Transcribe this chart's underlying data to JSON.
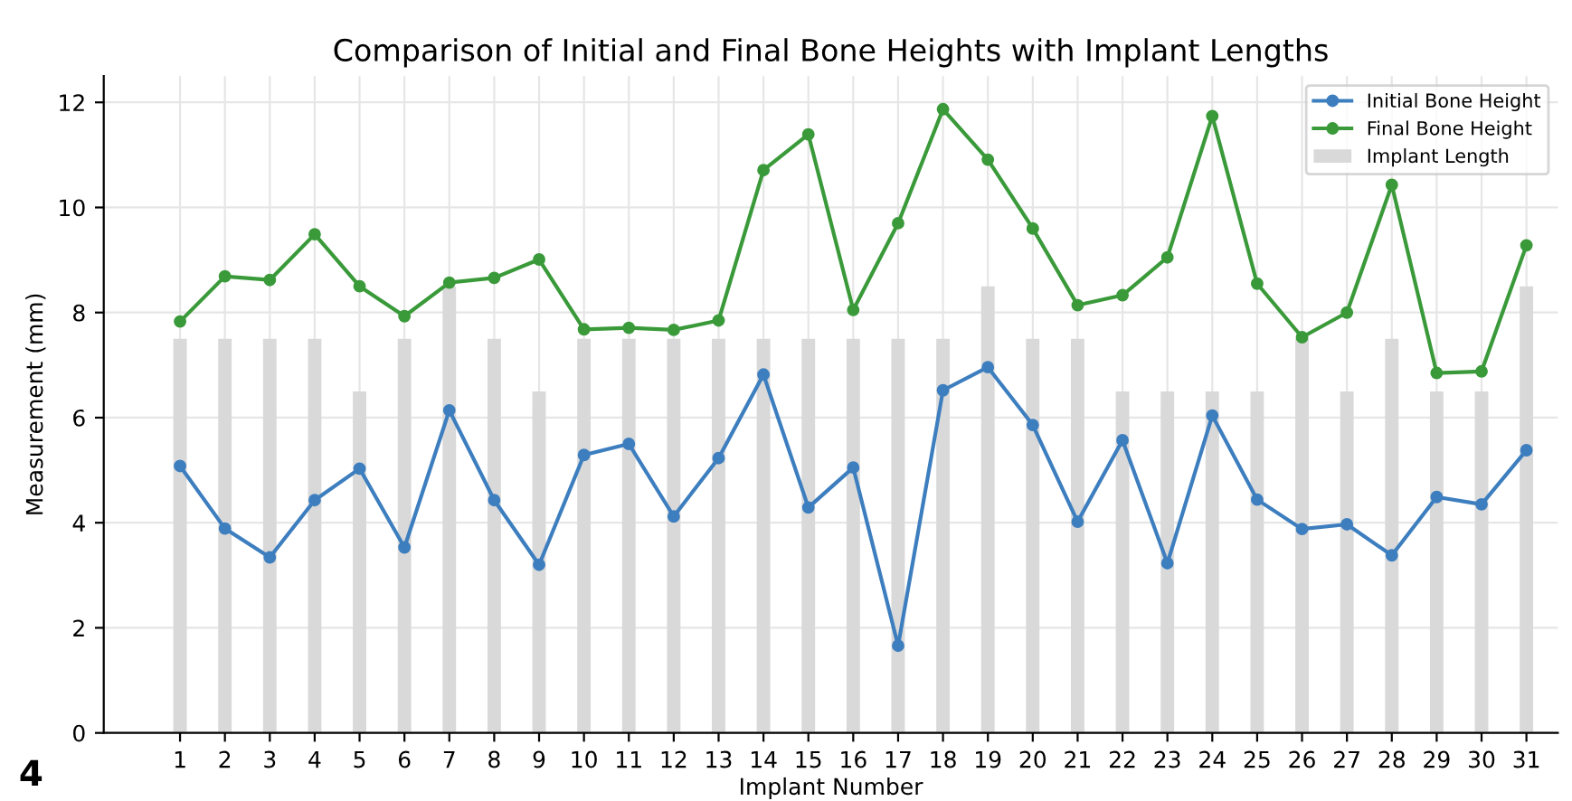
{
  "chart_data": {
    "type": "line",
    "title": "Comparison of Initial and Final Bone Heights with Implant Lengths",
    "xlabel": "Implant Number",
    "ylabel": "Measurement (mm)",
    "categories": [
      "1",
      "2",
      "3",
      "4",
      "5",
      "6",
      "7",
      "8",
      "9",
      "10",
      "11",
      "12",
      "13",
      "14",
      "15",
      "16",
      "17",
      "18",
      "19",
      "20",
      "21",
      "22",
      "23",
      "24",
      "25",
      "26",
      "27",
      "28",
      "29",
      "30",
      "31"
    ],
    "series": [
      {
        "name": "Implant Length",
        "type": "bar",
        "color": "#d9d9d9",
        "values": [
          7.5,
          7.5,
          7.5,
          7.5,
          6.5,
          7.5,
          8.5,
          7.5,
          6.5,
          7.5,
          7.5,
          7.5,
          7.5,
          7.5,
          7.5,
          7.5,
          7.5,
          7.5,
          8.5,
          7.5,
          7.5,
          6.5,
          6.5,
          6.5,
          6.5,
          7.5,
          6.5,
          7.5,
          6.5,
          6.5,
          8.5
        ]
      },
      {
        "name": "Initial Bone Height",
        "color": "#3d7ebf",
        "marker": "circle",
        "values": [
          5.08,
          3.89,
          3.34,
          4.43,
          5.03,
          3.53,
          6.14,
          4.43,
          3.2,
          5.29,
          5.5,
          4.12,
          5.23,
          6.82,
          4.29,
          5.05,
          1.66,
          6.52,
          6.96,
          5.86,
          4.02,
          5.57,
          3.23,
          6.04,
          4.44,
          3.88,
          3.97,
          3.38,
          4.49,
          4.35,
          5.38
        ]
      },
      {
        "name": "Final Bone Height",
        "color": "#3a9a3a",
        "marker": "circle",
        "values": [
          7.83,
          8.69,
          8.62,
          9.49,
          8.5,
          7.93,
          8.57,
          8.66,
          9.01,
          7.68,
          7.71,
          7.67,
          7.85,
          10.71,
          11.39,
          8.05,
          9.7,
          11.87,
          10.91,
          9.6,
          8.14,
          8.33,
          9.05,
          11.74,
          8.55,
          7.53,
          8.0,
          10.43,
          6.85,
          6.88,
          9.28
        ]
      }
    ],
    "ylim": [
      0,
      12.5
    ],
    "yticks": [
      0,
      2,
      4,
      6,
      8,
      10,
      12
    ],
    "grid": true,
    "legend": "top right",
    "annotations": [
      "4"
    ]
  }
}
